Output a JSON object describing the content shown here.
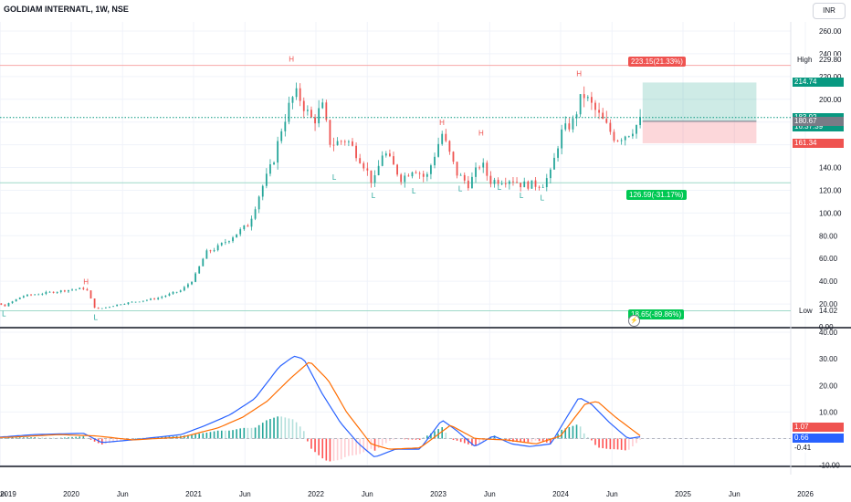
{
  "header": {
    "title": "GOLDIAM INTERNATL, 1W, NSE",
    "currency_button": "INR"
  },
  "colors": {
    "up": "#26a69a",
    "down": "#ef5350",
    "macd_line": "#2962ff",
    "signal_line": "#ff6d00",
    "price_line": "#089981",
    "gridline": "#f0f3fa"
  },
  "chart_data": [
    {
      "type": "candlestick",
      "title": "GOLDIAM INTERNATL, 1W, NSE",
      "ylim": [
        0,
        260
      ],
      "y_ticks": [
        "260.00",
        "240.00",
        "220.00",
        "200.00",
        "180.00",
        "160.00",
        "140.00",
        "120.00",
        "100.00",
        "80.00",
        "60.00",
        "40.00",
        "20.00",
        "0.00"
      ],
      "x_ticks": [
        "2019",
        "Jun",
        "2020",
        "Jun",
        "2021",
        "Jun",
        "2022",
        "Jun",
        "2023",
        "Jun",
        "2024",
        "Jun",
        "2025",
        "Jun",
        "2026"
      ],
      "x_tick_values": [
        2019.0,
        2019.42,
        2020.0,
        2020.42,
        2021.0,
        2021.42,
        2022.0,
        2022.42,
        2023.0,
        2023.42,
        2024.0,
        2024.42,
        2025.0,
        2025.42,
        2026.0
      ],
      "xlim": [
        2019.0,
        2026.0
      ],
      "anchors": [
        {
          "t": 2019.0,
          "v": 17
        },
        {
          "t": 2019.2,
          "v": 16
        },
        {
          "t": 2019.3,
          "v": 25
        },
        {
          "t": 2019.45,
          "v": 18
        },
        {
          "t": 2019.6,
          "v": 27
        },
        {
          "t": 2019.95,
          "v": 32
        },
        {
          "t": 2020.12,
          "v": 34
        },
        {
          "t": 2020.2,
          "v": 15
        },
        {
          "t": 2020.4,
          "v": 20
        },
        {
          "t": 2020.7,
          "v": 25
        },
        {
          "t": 2020.9,
          "v": 32
        },
        {
          "t": 2021.0,
          "v": 42
        },
        {
          "t": 2021.1,
          "v": 65
        },
        {
          "t": 2021.2,
          "v": 70
        },
        {
          "t": 2021.3,
          "v": 78
        },
        {
          "t": 2021.45,
          "v": 90
        },
        {
          "t": 2021.55,
          "v": 120
        },
        {
          "t": 2021.65,
          "v": 145
        },
        {
          "t": 2021.72,
          "v": 175
        },
        {
          "t": 2021.8,
          "v": 200
        },
        {
          "t": 2021.85,
          "v": 205
        },
        {
          "t": 2021.92,
          "v": 190
        },
        {
          "t": 2021.98,
          "v": 180
        },
        {
          "t": 2022.05,
          "v": 195
        },
        {
          "t": 2022.12,
          "v": 160
        },
        {
          "t": 2022.25,
          "v": 165
        },
        {
          "t": 2022.38,
          "v": 145
        },
        {
          "t": 2022.47,
          "v": 125
        },
        {
          "t": 2022.55,
          "v": 155
        },
        {
          "t": 2022.7,
          "v": 130
        },
        {
          "t": 2022.8,
          "v": 140
        },
        {
          "t": 2022.9,
          "v": 130
        },
        {
          "t": 2023.03,
          "v": 170
        },
        {
          "t": 2023.15,
          "v": 135
        },
        {
          "t": 2023.25,
          "v": 125
        },
        {
          "t": 2023.35,
          "v": 145
        },
        {
          "t": 2023.42,
          "v": 128
        },
        {
          "t": 2023.6,
          "v": 130
        },
        {
          "t": 2023.68,
          "v": 125
        },
        {
          "t": 2023.85,
          "v": 125
        },
        {
          "t": 2023.92,
          "v": 135
        },
        {
          "t": 2024.0,
          "v": 170
        },
        {
          "t": 2024.1,
          "v": 180
        },
        {
          "t": 2024.18,
          "v": 205
        },
        {
          "t": 2024.25,
          "v": 195
        },
        {
          "t": 2024.35,
          "v": 180
        },
        {
          "t": 2024.45,
          "v": 165
        },
        {
          "t": 2024.55,
          "v": 170
        },
        {
          "t": 2024.6,
          "v": 175
        },
        {
          "t": 2024.65,
          "v": 180.67
        }
      ],
      "pivots": [
        {
          "label": "H",
          "t": 2019.3,
          "v": 25
        },
        {
          "label": "L",
          "t": 2019.2,
          "v": 16
        },
        {
          "label": "L",
          "t": 2019.45,
          "v": 18
        },
        {
          "label": "H",
          "t": 2020.12,
          "v": 34
        },
        {
          "label": "L",
          "t": 2020.2,
          "v": 15
        },
        {
          "label": "H",
          "t": 2021.8,
          "v": 229.8
        },
        {
          "label": "L",
          "t": 2022.15,
          "v": 138
        },
        {
          "label": "L",
          "t": 2022.47,
          "v": 122
        },
        {
          "label": "L",
          "t": 2022.8,
          "v": 126
        },
        {
          "label": "H",
          "t": 2023.03,
          "v": 174
        },
        {
          "label": "L",
          "t": 2023.18,
          "v": 128
        },
        {
          "label": "H",
          "t": 2023.35,
          "v": 165
        },
        {
          "label": "L",
          "t": 2023.5,
          "v": 129
        },
        {
          "label": "L",
          "t": 2023.68,
          "v": 122
        },
        {
          "label": "L",
          "t": 2023.85,
          "v": 120
        },
        {
          "label": "H",
          "t": 2024.15,
          "v": 217
        }
      ],
      "high_label": "High",
      "high_value": "229.80",
      "high": 229.8,
      "low_label": "Low",
      "low_value": "14.02",
      "low": 14.02,
      "support_line": 126.59,
      "current_price": 183.92,
      "current_price_label": "183.92",
      "countdown_label": "16:37:39",
      "last_close_label": "180.67",
      "last_close": 180.67,
      "take_profit": 214.74,
      "take_profit_label": "214.74",
      "stop_loss": 161.34,
      "stop_loss_label": "161.34",
      "position_start": 2024.67,
      "position_end": 2025.6,
      "targets": [
        {
          "label": "223.15(21.33%)",
          "v": 223.15,
          "direction": "up"
        },
        {
          "label": "126.59(-31.17%)",
          "v": 126.59,
          "direction": "down"
        },
        {
          "label": "18.65(-89.86%)",
          "v": 18.65,
          "direction": "down"
        }
      ]
    },
    {
      "type": "macd",
      "ylim": [
        -12,
        40
      ],
      "y_ticks": [
        "40.00",
        "30.00",
        "20.00",
        "10.00",
        "0.00",
        "-10.00"
      ],
      "series": [
        {
          "name": "MACD",
          "color": "#2962ff"
        },
        {
          "name": "Signal",
          "color": "#ff6d00"
        }
      ],
      "macd_anchors": [
        {
          "t": 2019.0,
          "v": 0
        },
        {
          "t": 2019.4,
          "v": 0.5
        },
        {
          "t": 2019.7,
          "v": 1.5
        },
        {
          "t": 2020.1,
          "v": 2
        },
        {
          "t": 2020.25,
          "v": -1.5
        },
        {
          "t": 2020.5,
          "v": -0.5
        },
        {
          "t": 2020.9,
          "v": 1.5
        },
        {
          "t": 2021.1,
          "v": 5
        },
        {
          "t": 2021.3,
          "v": 9
        },
        {
          "t": 2021.5,
          "v": 15
        },
        {
          "t": 2021.7,
          "v": 27
        },
        {
          "t": 2021.82,
          "v": 31
        },
        {
          "t": 2021.9,
          "v": 30
        },
        {
          "t": 2022.05,
          "v": 17
        },
        {
          "t": 2022.2,
          "v": 6
        },
        {
          "t": 2022.35,
          "v": -2
        },
        {
          "t": 2022.48,
          "v": -7
        },
        {
          "t": 2022.65,
          "v": -4
        },
        {
          "t": 2022.85,
          "v": -4
        },
        {
          "t": 2023.03,
          "v": 7
        },
        {
          "t": 2023.15,
          "v": 3
        },
        {
          "t": 2023.3,
          "v": -3
        },
        {
          "t": 2023.45,
          "v": 1
        },
        {
          "t": 2023.6,
          "v": -2
        },
        {
          "t": 2023.75,
          "v": -3
        },
        {
          "t": 2023.92,
          "v": -2
        },
        {
          "t": 2024.05,
          "v": 8
        },
        {
          "t": 2024.15,
          "v": 15.5
        },
        {
          "t": 2024.25,
          "v": 13
        },
        {
          "t": 2024.4,
          "v": 6
        },
        {
          "t": 2024.55,
          "v": 0
        },
        {
          "t": 2024.65,
          "v": 0.66
        }
      ],
      "signal_anchors": [
        {
          "t": 2019.0,
          "v": 0
        },
        {
          "t": 2019.5,
          "v": 0.5
        },
        {
          "t": 2019.9,
          "v": 1.5
        },
        {
          "t": 2020.2,
          "v": 1
        },
        {
          "t": 2020.5,
          "v": -0.5
        },
        {
          "t": 2020.9,
          "v": 0.5
        },
        {
          "t": 2021.2,
          "v": 4
        },
        {
          "t": 2021.4,
          "v": 8
        },
        {
          "t": 2021.6,
          "v": 14
        },
        {
          "t": 2021.8,
          "v": 23
        },
        {
          "t": 2021.95,
          "v": 29
        },
        {
          "t": 2022.1,
          "v": 22
        },
        {
          "t": 2022.25,
          "v": 10
        },
        {
          "t": 2022.45,
          "v": -2
        },
        {
          "t": 2022.6,
          "v": -4
        },
        {
          "t": 2022.85,
          "v": -3.5
        },
        {
          "t": 2023.1,
          "v": 5
        },
        {
          "t": 2023.3,
          "v": 0
        },
        {
          "t": 2023.55,
          "v": -0.5
        },
        {
          "t": 2023.8,
          "v": -2
        },
        {
          "t": 2024.0,
          "v": 1
        },
        {
          "t": 2024.2,
          "v": 13
        },
        {
          "t": 2024.3,
          "v": 14
        },
        {
          "t": 2024.45,
          "v": 8
        },
        {
          "t": 2024.65,
          "v": 1.07
        }
      ],
      "macd_label": "0.66",
      "signal_label": "1.07",
      "hist_label": "-0.41"
    }
  ]
}
